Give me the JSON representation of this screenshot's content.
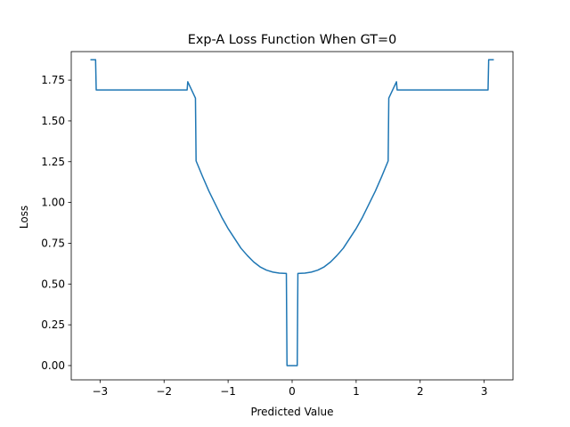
{
  "chart_data": {
    "type": "line",
    "title": "Exp-A Loss Function When GT=0",
    "xlabel": "Predicted Value",
    "ylabel": "Loss",
    "xlim": [
      -3.45,
      3.45
    ],
    "ylim": [
      -0.0875,
      1.925
    ],
    "grid": false,
    "x_ticks": [
      -3,
      -2,
      -1,
      0,
      1,
      2,
      3
    ],
    "x_tick_labels": [
      "−3",
      "−2",
      "−1",
      "0",
      "1",
      "2",
      "3"
    ],
    "y_ticks": [
      0.0,
      0.25,
      0.5,
      0.75,
      1.0,
      1.25,
      1.5,
      1.75
    ],
    "y_tick_labels": [
      "0.00",
      "0.25",
      "0.50",
      "0.75",
      "1.00",
      "1.25",
      "1.50",
      "1.75"
    ],
    "series": [
      {
        "color": "#1f77b4",
        "x": [
          -3.14,
          -3.07,
          -3.06,
          -1.64,
          -1.63,
          -1.51,
          -1.5,
          -1.4,
          -1.3,
          -1.2,
          -1.1,
          -1.0,
          -0.9,
          -0.8,
          -0.7,
          -0.6,
          -0.5,
          -0.4,
          -0.3,
          -0.2,
          -0.09,
          -0.08,
          0.0,
          0.08,
          0.09,
          0.2,
          0.3,
          0.4,
          0.5,
          0.6,
          0.7,
          0.8,
          0.9,
          1.0,
          1.1,
          1.2,
          1.3,
          1.4,
          1.5,
          1.51,
          1.63,
          1.64,
          3.06,
          3.07,
          3.14
        ],
        "y": [
          1.875,
          1.875,
          1.69,
          1.69,
          1.74,
          1.64,
          1.255,
          1.16,
          1.07,
          0.99,
          0.91,
          0.84,
          0.78,
          0.72,
          0.675,
          0.635,
          0.605,
          0.585,
          0.573,
          0.567,
          0.565,
          0.0,
          0.0,
          0.0,
          0.565,
          0.567,
          0.573,
          0.585,
          0.605,
          0.635,
          0.675,
          0.72,
          0.78,
          0.84,
          0.91,
          0.99,
          1.07,
          1.16,
          1.255,
          1.64,
          1.74,
          1.69,
          1.69,
          1.875,
          1.875
        ]
      }
    ]
  }
}
